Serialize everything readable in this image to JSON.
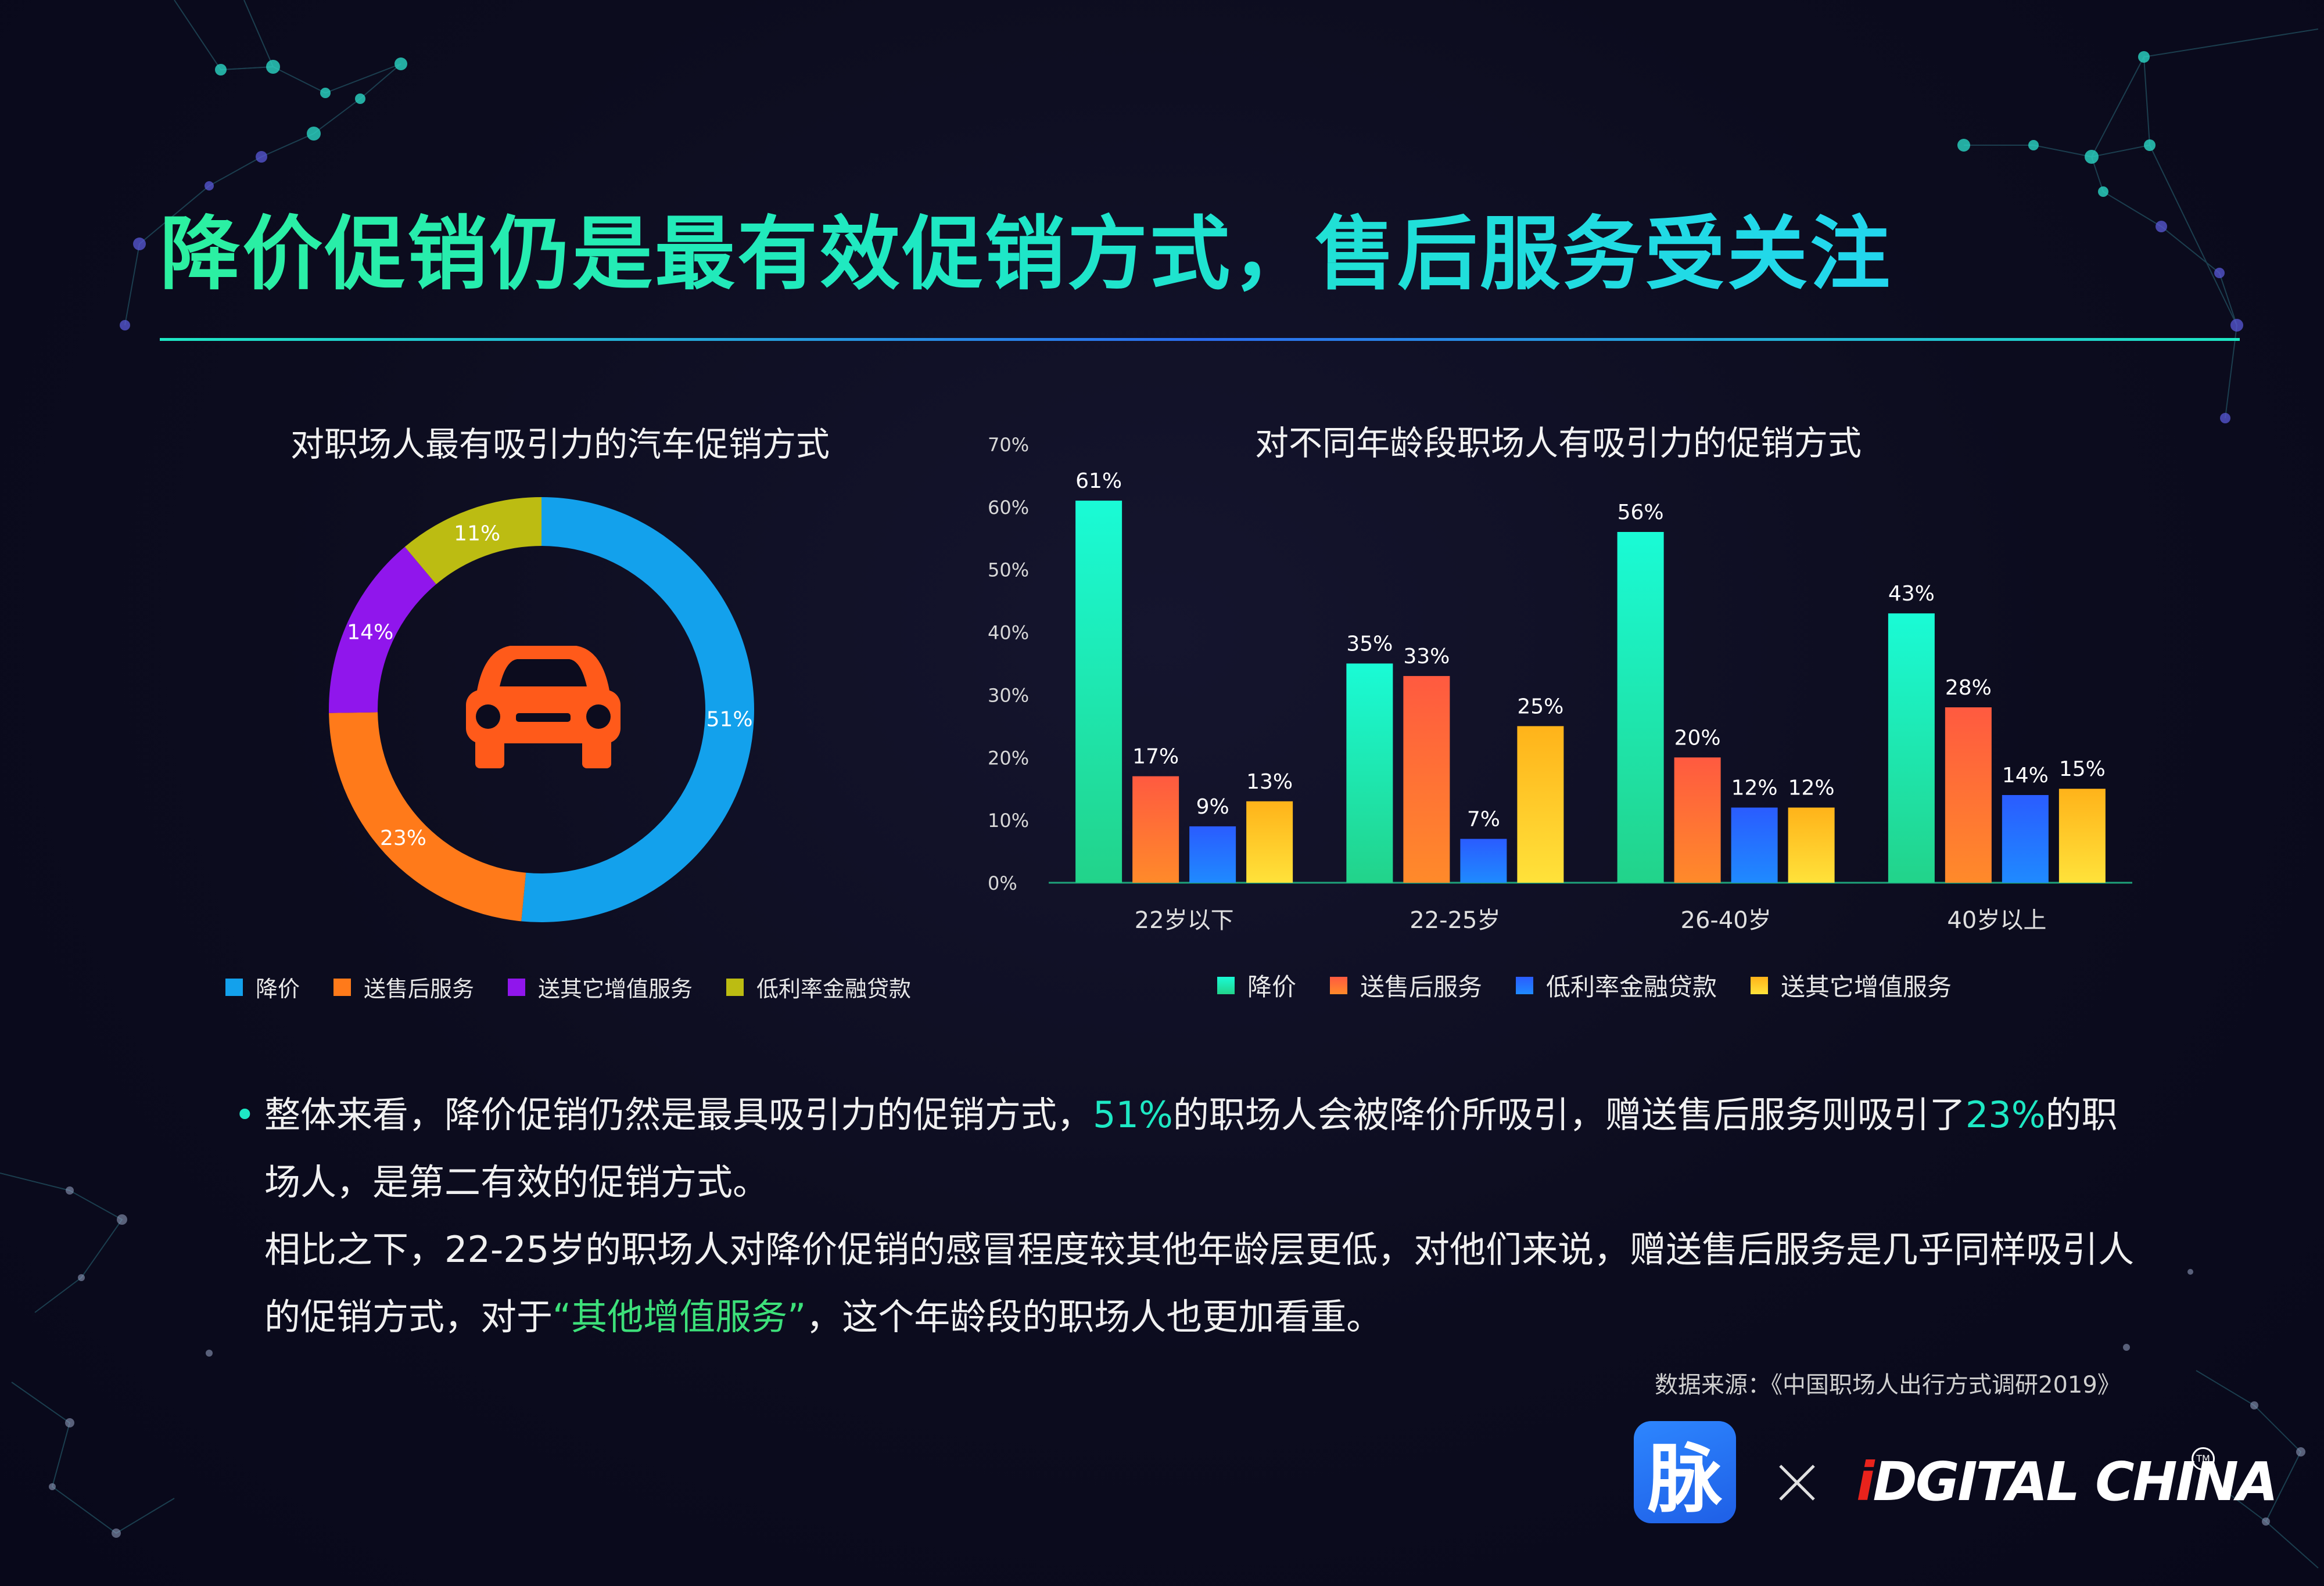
{
  "title": "降价促销仍是最有效促销方式，售后服务受关注",
  "colors": {
    "price_cut": "#13a1ec",
    "after_sales": "#ff7a1a",
    "other_value": "#9016ec",
    "low_rate": "#bcbc12",
    "car": "#ff5a1a",
    "bar_price_cut": [
      "#1afbd6",
      "#22d38a"
    ],
    "bar_after_sales": [
      "#ff5a40",
      "#ff8a2a"
    ],
    "bar_low_rate": [
      "#2a5cff",
      "#1f8aff"
    ],
    "bar_other_value": [
      "#ffb31a",
      "#ffe23a"
    ]
  },
  "left_chart": {
    "legend": [
      "降价",
      "送售后服务",
      "送其它增值服务",
      "低利率金融贷款"
    ]
  },
  "right_chart": {
    "legend": [
      "降价",
      "送售后服务",
      "低利率金融贷款",
      "送其它增值服务"
    ]
  },
  "chart_data": [
    {
      "type": "pie",
      "title": "对职场人最有吸引力的汽车促销方式",
      "center_icon": "car-icon",
      "categories": [
        "降价",
        "送售后服务",
        "送其它增值服务",
        "低利率金融贷款"
      ],
      "values": [
        51,
        23,
        14,
        11
      ],
      "labels": [
        "51%",
        "23%",
        "14%",
        "11%"
      ],
      "legend_position": "bottom"
    },
    {
      "type": "bar",
      "title": "对不同年龄段职场人有吸引力的促销方式",
      "categories": [
        "22岁以下",
        "22-25岁",
        "26-40岁",
        "40岁以上"
      ],
      "series": [
        {
          "name": "降价",
          "values": [
            61,
            35,
            56,
            43
          ],
          "labels": [
            "61%",
            "35%",
            "56%",
            "43%"
          ]
        },
        {
          "name": "送售后服务",
          "values": [
            17,
            33,
            20,
            28
          ],
          "labels": [
            "17%",
            "33%",
            "20%",
            "28%"
          ]
        },
        {
          "name": "低利率金融贷款",
          "values": [
            9,
            7,
            12,
            14
          ],
          "labels": [
            "9%",
            "7%",
            "12%",
            "14%"
          ]
        },
        {
          "name": "送其它增值服务",
          "values": [
            13,
            25,
            12,
            15
          ],
          "labels": [
            "13%",
            "25%",
            "12%",
            "15%"
          ]
        }
      ],
      "yticks": [
        "0%",
        "10%",
        "20%",
        "30%",
        "40%",
        "50%",
        "60%",
        "70%"
      ],
      "ylim": [
        0,
        70
      ],
      "grid": false,
      "legend_position": "bottom"
    }
  ],
  "notes": {
    "p1_a": "整体来看，降价促销仍然是最具吸引力的促销方式，",
    "p1_hl1": "51%",
    "p1_b": "的职场人会被降价所吸引，赠送售后服务则吸引了",
    "p1_hl2": "23%",
    "p1_c": "的职场人，是第二有效的促销方式。",
    "p2_a": "相比之下，22-25岁的职场人对降价促销的感冒程度较其他年龄层更低，对他们来说，赠送售后服务是几乎同样吸引人的促销方式，对于",
    "p2_hl": "“其他增值服务”",
    "p2_b": "，这个年龄段的职场人也更加看重。"
  },
  "source": "数据来源：《中国职场人出行方式调研2019》",
  "logos": {
    "mai": "脉",
    "dc_i": "i",
    "dc_d": "D",
    "dc_rest": "GITAL CHINA",
    "tm": "TM"
  }
}
